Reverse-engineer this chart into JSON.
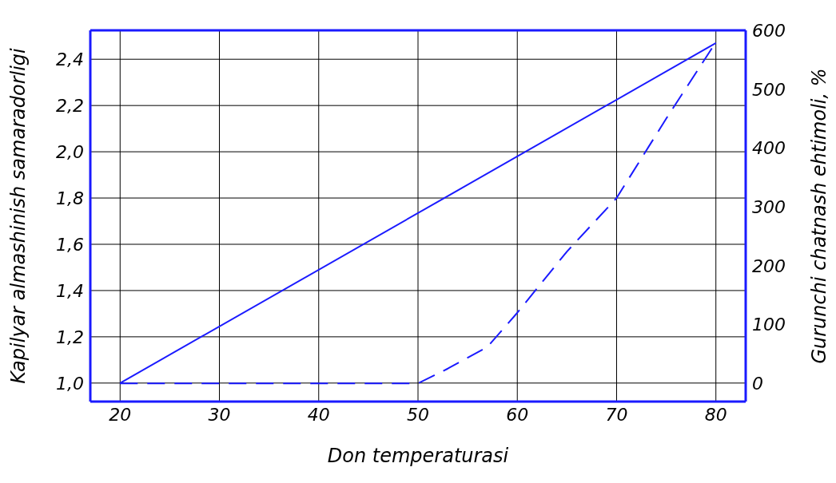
{
  "chart_data": {
    "type": "line",
    "xlabel": "Don temperaturasi",
    "ylabel": "Kapilyar almashinish samaradorligi",
    "y2label": "Gurunchi chatnash ehtimoli, %",
    "xlim": [
      17,
      83
    ],
    "xticks": [
      20,
      30,
      40,
      50,
      60,
      70,
      80
    ],
    "ylim": [
      0.92,
      2.525
    ],
    "yticks": [
      {
        "value": 1.0,
        "label": "1,0"
      },
      {
        "value": 1.2,
        "label": "1,2"
      },
      {
        "value": 1.4,
        "label": "1,4"
      },
      {
        "value": 1.6,
        "label": "1,6"
      },
      {
        "value": 1.8,
        "label": "1,8"
      },
      {
        "value": 2.0,
        "label": "2,0"
      },
      {
        "value": 2.2,
        "label": "2,2"
      },
      {
        "value": 2.4,
        "label": "2,4"
      }
    ],
    "y2lim": [
      -31,
      600
    ],
    "y2ticks": [
      0,
      100,
      200,
      300,
      400,
      500,
      600
    ],
    "grid": true,
    "series": [
      {
        "color": "#1a1aff",
        "line_style": "solid",
        "x": [
          20,
          80
        ],
        "values": [
          1.0,
          2.47
        ]
      },
      {
        "color": "#1a1aff",
        "line_style": "dashed",
        "axis": "y2",
        "x": [
          20,
          50,
          53,
          57,
          60,
          65,
          70,
          75,
          80
        ],
        "values": [
          0,
          0,
          25,
          62,
          120,
          224,
          315,
          450,
          580
        ]
      }
    ]
  }
}
